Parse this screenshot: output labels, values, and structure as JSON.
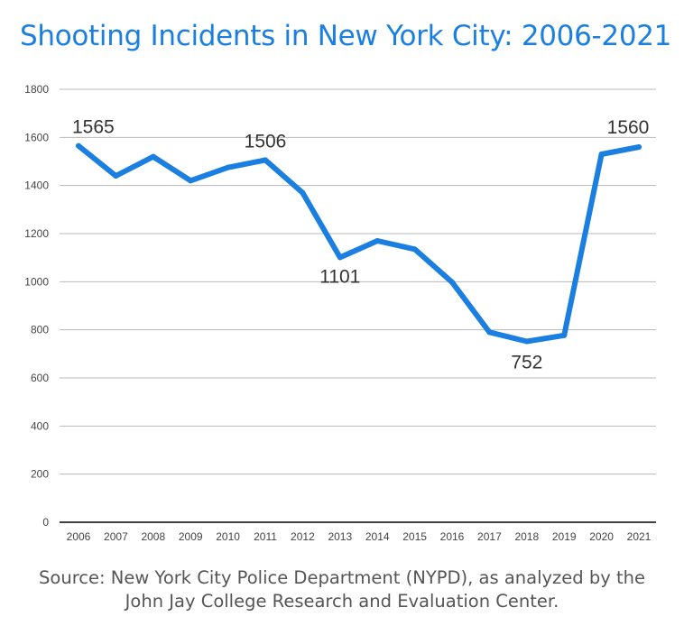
{
  "title": "Shooting Incidents in New York City: 2006-2021",
  "source": {
    "line1": "Source: New York City Police Department (NYPD), as analyzed by the",
    "line2": "John Jay College Research and Evaluation Center."
  },
  "colors": {
    "title": "#1a7fe0",
    "line": "#1a7fe0",
    "grid": "#b8b8b8",
    "axis": "#000000"
  },
  "chart_data": {
    "type": "line",
    "title": "Shooting Incidents in New York City: 2006-2021",
    "xlabel": "",
    "ylabel": "",
    "x": [
      "2006",
      "2007",
      "2008",
      "2009",
      "2010",
      "2011",
      "2012",
      "2013",
      "2014",
      "2015",
      "2016",
      "2017",
      "2018",
      "2019",
      "2020",
      "2021"
    ],
    "series": [
      {
        "values": [
          1565,
          1440,
          1520,
          1420,
          1475,
          1506,
          1370,
          1101,
          1170,
          1135,
          998,
          790,
          752,
          777,
          1530,
          1560
        ]
      }
    ],
    "ylim": [
      0,
      1800
    ],
    "yticks": [
      0,
      200,
      400,
      600,
      800,
      1000,
      1200,
      1400,
      1600,
      1800
    ],
    "grid": true,
    "legend": "none",
    "data_labels": [
      {
        "index": 0,
        "text": "1565"
      },
      {
        "index": 5,
        "text": "1506"
      },
      {
        "index": 7,
        "text": "1101"
      },
      {
        "index": 12,
        "text": "752"
      },
      {
        "index": 15,
        "text": "1560"
      }
    ]
  }
}
